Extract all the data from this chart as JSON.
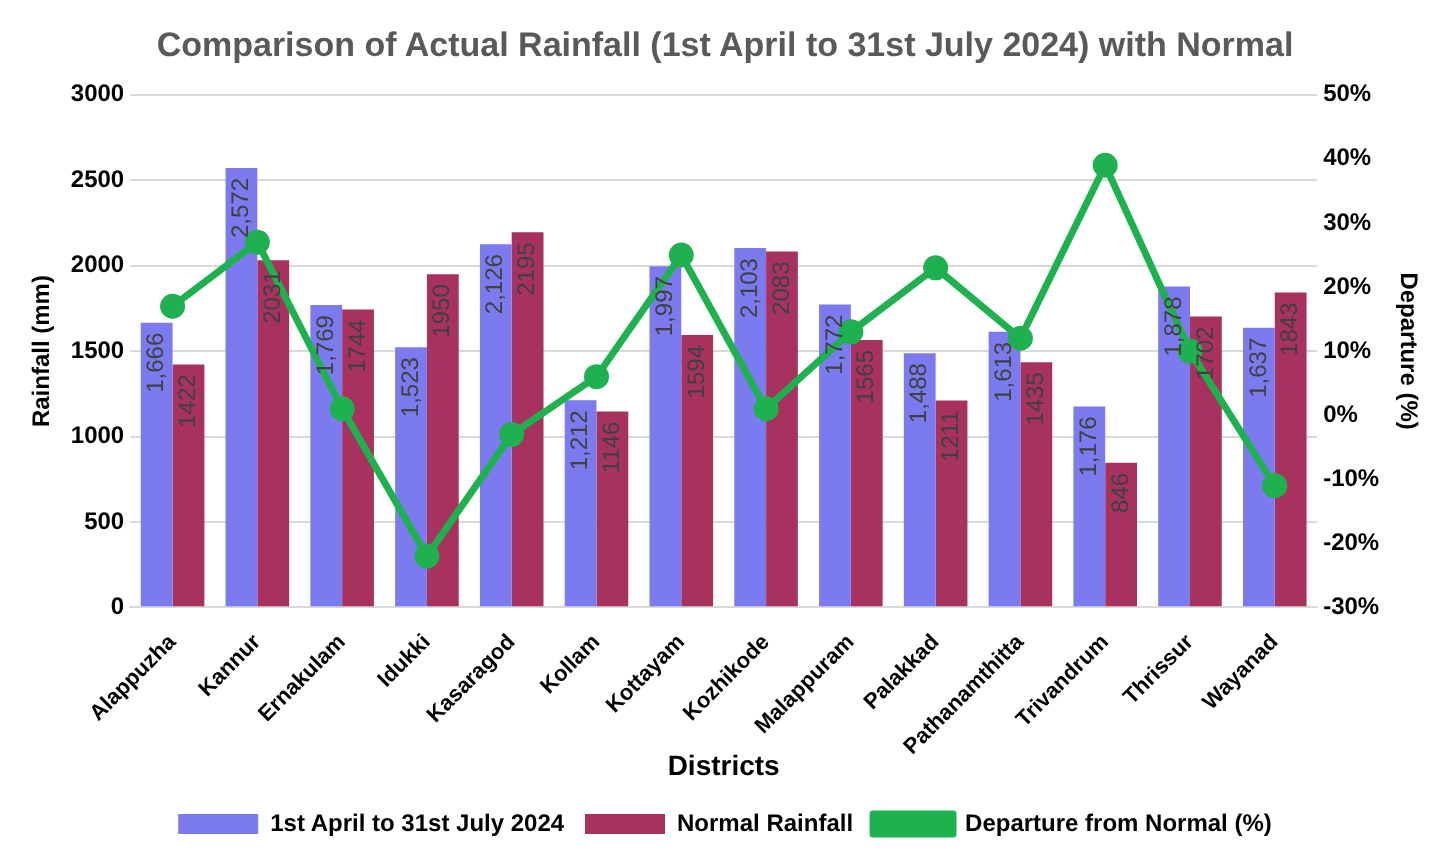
{
  "chart_data": {
    "type": "bar",
    "title": "Comparison of Actual Rainfall (1st April to 31st July 2024) with Normal",
    "xlabel": "Districts",
    "ylabel": "Rainfall (mm)",
    "y2label": "Departure (%)",
    "categories": [
      "Alappuzha",
      "Kannur",
      "Ernakulam",
      "Idukki",
      "Kasaragod",
      "Kollam",
      "Kottayam",
      "Kozhikode",
      "Malappuram",
      "Palakkad",
      "Pathanamthitta",
      "Trivandrum",
      "Thrissur",
      "Wayanad"
    ],
    "series": [
      {
        "name": "1st April to 31st July 2024",
        "color": "#7b7bef",
        "values": [
          1666,
          2572,
          1769,
          1523,
          2126,
          1212,
          1997,
          2103,
          1772,
          1488,
          1613,
          1176,
          1878,
          1637
        ],
        "value_labels": [
          "1,666",
          "2,572",
          "1,769",
          "1,523",
          "2,126",
          "1,212",
          "1,997",
          "2,103",
          "1,772",
          "1,488",
          "1,613",
          "1,176",
          "1,878",
          "1,637"
        ]
      },
      {
        "name": "Normal Rainfall",
        "color": "#a8325e",
        "values": [
          1422,
          2031,
          1744,
          1950,
          2195,
          1146,
          1594,
          2083,
          1565,
          1211,
          1435,
          846,
          1702,
          1843
        ],
        "value_labels": [
          "1422",
          "2031",
          "1744",
          "1950",
          "2195",
          "1146",
          "1594",
          "2083",
          "1565",
          "1211",
          "1435",
          "846",
          "1702",
          "1843"
        ]
      },
      {
        "name": "Departure from Normal (%)",
        "type": "line",
        "axis": "y2",
        "color": "#1fb050",
        "values": [
          17,
          27,
          1,
          -22,
          -3,
          6,
          25,
          1,
          13,
          23,
          12,
          39,
          10,
          -11
        ]
      }
    ],
    "ylim": [
      0,
      3000
    ],
    "yticks": [
      0,
      500,
      1000,
      1500,
      2000,
      2500,
      3000
    ],
    "y2lim": [
      -30,
      50
    ],
    "y2ticks": [
      {
        "value": -30,
        "label": "-30%"
      },
      {
        "value": -20,
        "label": "-20%"
      },
      {
        "value": -10,
        "label": "-10%"
      },
      {
        "value": 0,
        "label": "0%"
      },
      {
        "value": 10,
        "label": "10%"
      },
      {
        "value": 20,
        "label": "20%"
      },
      {
        "value": 30,
        "label": "30%"
      },
      {
        "value": 40,
        "label": "40%"
      },
      {
        "value": 50,
        "label": "50%"
      }
    ],
    "grid": "y",
    "legend": "bottom",
    "marker": "circle",
    "line_style": "solid"
  }
}
